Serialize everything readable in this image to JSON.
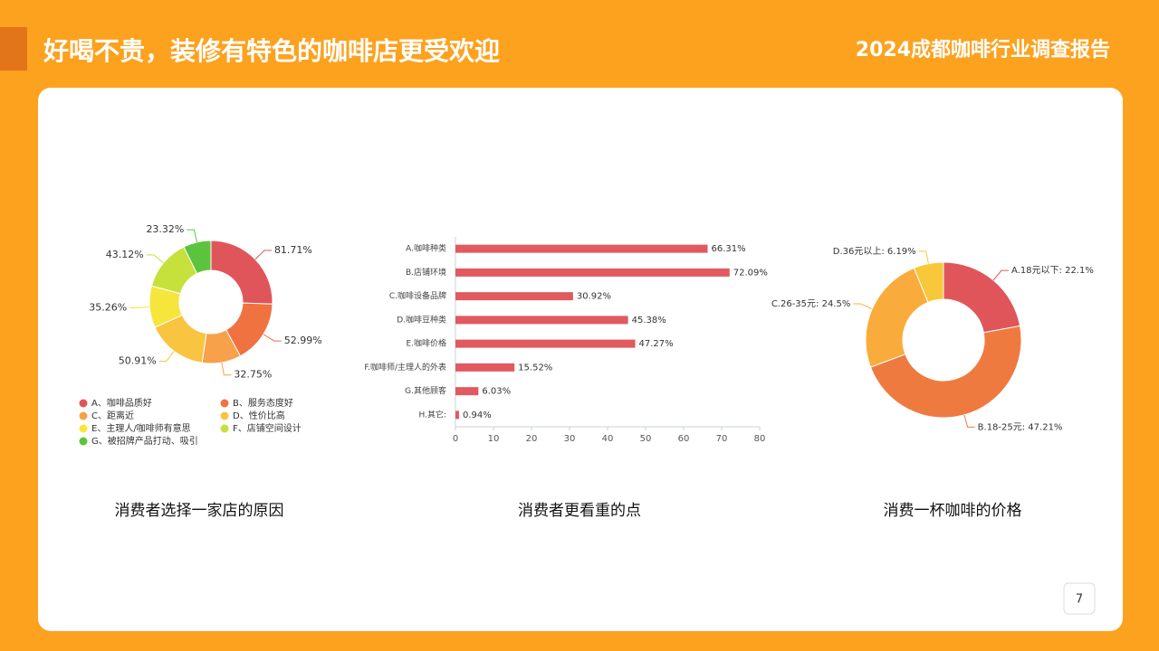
{
  "header": {
    "title": "好喝不贵，装修有特色的咖啡店更受欢迎",
    "report": "2024成都咖啡行业调查报告",
    "page": "7"
  },
  "chart_data": [
    {
      "type": "donut",
      "caption": "消费者选择一家店的原因",
      "categories": [
        "A、咖啡品质好",
        "B、服务态度好",
        "C、距离近",
        "D、性价比高",
        "E、主理人/咖啡师有意思",
        "F、店铺空间设计",
        "G、被招牌产品打动、吸引"
      ],
      "values": [
        81.71,
        52.99,
        32.75,
        50.91,
        35.26,
        43.12,
        23.32
      ],
      "value_labels": [
        "81.71%",
        "52.99%",
        "32.75%",
        "50.91%",
        "35.26%",
        "43.12%",
        "23.32%"
      ],
      "colors": [
        "#e0555a",
        "#ef7240",
        "#f7a24a",
        "#f9c440",
        "#f6e63c",
        "#c6e03c",
        "#5cc43c"
      ],
      "legend": "bottom"
    },
    {
      "type": "hbar",
      "caption": "消费者更看重的点",
      "categories": [
        "A.咖啡种类",
        "B.店铺环境",
        "C.咖啡设备品牌",
        "D.咖啡豆种类",
        "E.咖啡价格",
        "F.咖啡师/主理人的外表",
        "G.其他顾客",
        "H.其它:"
      ],
      "values": [
        66.31,
        72.09,
        30.92,
        45.38,
        47.27,
        15.52,
        6.03,
        0.94
      ],
      "value_labels": [
        "66.31%",
        "72.09%",
        "30.92%",
        "45.38%",
        "47.27%",
        "15.52%",
        "6.03%",
        "0.94%"
      ],
      "color": "#e05a5f",
      "xlim": [
        0,
        80
      ],
      "xticks": [
        0,
        10,
        20,
        30,
        40,
        50,
        60,
        70,
        80
      ]
    },
    {
      "type": "donut",
      "caption": "消费一杯咖啡的价格",
      "labels": [
        "A.18元以下: 22.1%",
        "B.18-25元: 47.21%",
        "C.26-35元: 24.5%",
        "D.36元以上: 6.19%"
      ],
      "values": [
        22.1,
        47.21,
        24.5,
        6.19
      ],
      "colors": [
        "#e0555a",
        "#ef7a40",
        "#f9ac3c",
        "#f9c83a"
      ]
    }
  ]
}
